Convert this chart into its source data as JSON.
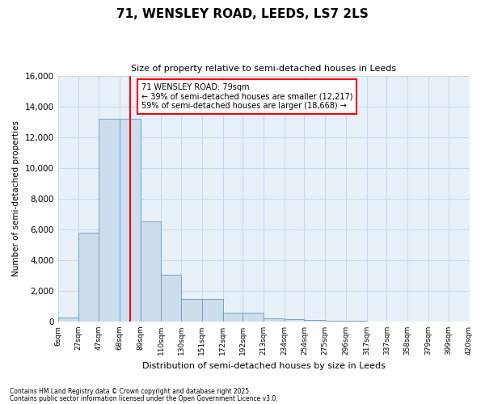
{
  "title_line1": "71, WENSLEY ROAD, LEEDS, LS7 2LS",
  "title_line2": "Size of property relative to semi-detached houses in Leeds",
  "xlabel": "Distribution of semi-detached houses by size in Leeds",
  "ylabel": "Number of semi-detached properties",
  "bin_labels": [
    "6sqm",
    "27sqm",
    "47sqm",
    "68sqm",
    "89sqm",
    "110sqm",
    "130sqm",
    "151sqm",
    "172sqm",
    "192sqm",
    "213sqm",
    "234sqm",
    "254sqm",
    "275sqm",
    "296sqm",
    "317sqm",
    "337sqm",
    "358sqm",
    "379sqm",
    "399sqm",
    "420sqm"
  ],
  "bin_edges": [
    6,
    27,
    47,
    68,
    89,
    110,
    130,
    151,
    172,
    192,
    213,
    234,
    254,
    275,
    296,
    317,
    337,
    358,
    379,
    399,
    420
  ],
  "bar_heights": [
    250,
    5800,
    13200,
    13200,
    6500,
    3050,
    1480,
    1480,
    600,
    600,
    220,
    180,
    100,
    60,
    40,
    20,
    10,
    5,
    2,
    1
  ],
  "bar_color": "#ccdded",
  "bar_edgecolor": "#6699bb",
  "property_size": 79,
  "property_line_color": "red",
  "annotation_text": "71 WENSLEY ROAD: 79sqm\n← 39% of semi-detached houses are smaller (12,217)\n59% of semi-detached houses are larger (18,668) →",
  "annotation_box_color": "white",
  "annotation_box_edgecolor": "red",
  "ylim": [
    0,
    16000
  ],
  "yticks": [
    0,
    2000,
    4000,
    6000,
    8000,
    10000,
    12000,
    14000,
    16000
  ],
  "footnote1": "Contains HM Land Registry data © Crown copyright and database right 2025.",
  "footnote2": "Contains public sector information licensed under the Open Government Licence v3.0.",
  "grid_color": "#c8d8e8",
  "background_color": "#e8f0f8"
}
